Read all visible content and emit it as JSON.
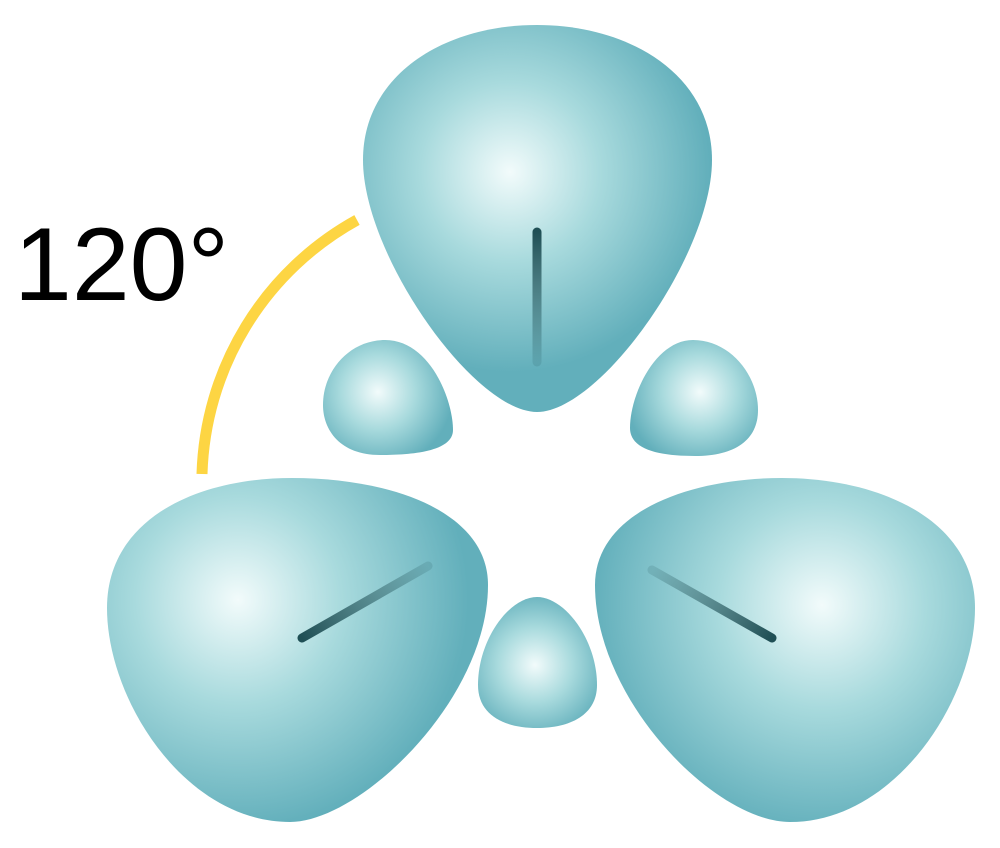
{
  "diagram": {
    "angle_label": "120°",
    "colors": {
      "lobe_highlight": "#f2fbfb",
      "lobe_mid": "#a8dadd",
      "lobe_base": "#62afbb",
      "angle_arc": "#fdd543",
      "axis_line": "#1f4f55",
      "background": "#ffffff"
    },
    "large_lobes": [
      "top",
      "bottom-left",
      "bottom-right"
    ],
    "small_lobes": [
      "upper-left",
      "upper-right",
      "bottom-center"
    ]
  }
}
